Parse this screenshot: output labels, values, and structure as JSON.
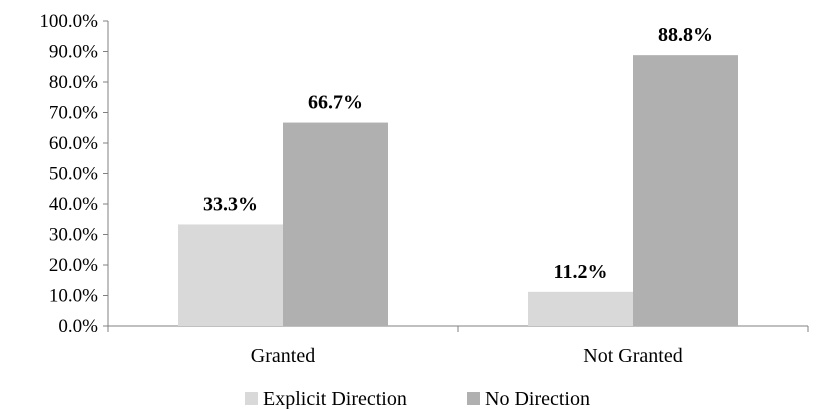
{
  "chart_data": {
    "type": "bar",
    "categories": [
      "Granted",
      "Not Granted"
    ],
    "series": [
      {
        "name": "Explicit Direction",
        "values": [
          33.3,
          11.2
        ],
        "labels": [
          "33.3%",
          "11.2%"
        ],
        "color": "#d9d9d9"
      },
      {
        "name": "No Direction",
        "values": [
          66.7,
          88.8
        ],
        "labels": [
          "66.7%",
          "88.8%"
        ],
        "color": "#b0b0b0"
      }
    ],
    "ylim": [
      0,
      100
    ],
    "yticks": [
      "0.0%",
      "10.0%",
      "20.0%",
      "30.0%",
      "40.0%",
      "50.0%",
      "60.0%",
      "70.0%",
      "80.0%",
      "90.0%",
      "100.0%"
    ],
    "grid": false,
    "legend": "bottom",
    "axis_color": "#808080"
  }
}
